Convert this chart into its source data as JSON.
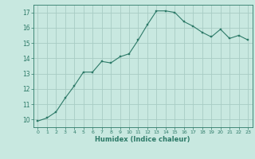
{
  "x": [
    0,
    1,
    2,
    3,
    4,
    5,
    6,
    7,
    8,
    9,
    10,
    11,
    12,
    13,
    14,
    15,
    16,
    17,
    18,
    19,
    20,
    21,
    22,
    23
  ],
  "y": [
    9.9,
    10.1,
    10.5,
    11.4,
    12.2,
    13.1,
    13.1,
    13.8,
    13.7,
    14.1,
    14.3,
    15.2,
    16.2,
    17.1,
    17.1,
    17.0,
    16.4,
    16.1,
    15.7,
    15.4,
    15.9,
    15.3,
    15.5,
    15.2
  ],
  "xlim": [
    -0.5,
    23.5
  ],
  "ylim": [
    9.5,
    17.5
  ],
  "yticks": [
    10,
    11,
    12,
    13,
    14,
    15,
    16,
    17
  ],
  "xticks": [
    0,
    1,
    2,
    3,
    4,
    5,
    6,
    7,
    8,
    9,
    10,
    11,
    12,
    13,
    14,
    15,
    16,
    17,
    18,
    19,
    20,
    21,
    22,
    23
  ],
  "xlabel": "Humidex (Indice chaleur)",
  "line_color": "#2d7a68",
  "marker_color": "#2d7a68",
  "bg_color": "#c8e8e0",
  "grid_color": "#a8ccc4",
  "axis_color": "#2d7a68",
  "tick_color": "#2d7a68",
  "label_color": "#2d7a68"
}
